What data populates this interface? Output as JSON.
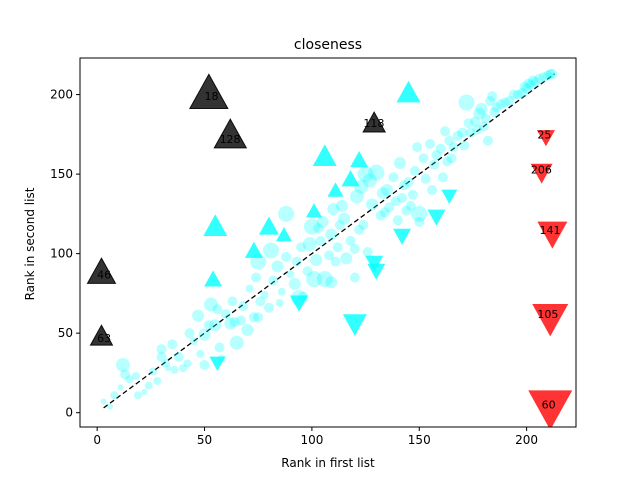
{
  "chart_data": {
    "type": "scatter",
    "title": "closeness",
    "xlabel": "Rank in first list",
    "ylabel": "Rank in second list",
    "xlim": [
      -8,
      223
    ],
    "ylim": [
      -9,
      223
    ],
    "xticks": [
      0,
      50,
      100,
      150,
      200
    ],
    "yticks": [
      0,
      50,
      100,
      150,
      200
    ],
    "grid": false,
    "diagonal": {
      "from": [
        3,
        3
      ],
      "to": [
        213,
        213
      ],
      "style": "dashed",
      "color": "#000000"
    },
    "colors": {
      "agree": "#00ffff",
      "up": "#00ffff",
      "down": "#00ffff",
      "outlier_above": "#000000",
      "outlier_below": "#ff0000"
    },
    "series": [
      {
        "marker": "circle",
        "color": "#00ffff",
        "points": [
          [
            3,
            7
          ],
          [
            6,
            4
          ],
          [
            8,
            11
          ],
          [
            11,
            16
          ],
          [
            12,
            30
          ],
          [
            13,
            24
          ],
          [
            15,
            21
          ],
          [
            18,
            23
          ],
          [
            19,
            11
          ],
          [
            22,
            13
          ],
          [
            24,
            17
          ],
          [
            26,
            26
          ],
          [
            28,
            20
          ],
          [
            30,
            40
          ],
          [
            32,
            31
          ],
          [
            33,
            28
          ],
          [
            35,
            43
          ],
          [
            36,
            27
          ],
          [
            38,
            35
          ],
          [
            40,
            28
          ],
          [
            42,
            31
          ],
          [
            43,
            50
          ],
          [
            45,
            45
          ],
          [
            47,
            61
          ],
          [
            48,
            37
          ],
          [
            50,
            49
          ],
          [
            52,
            55
          ],
          [
            53,
            68
          ],
          [
            55,
            55
          ],
          [
            56,
            65
          ],
          [
            57,
            41
          ],
          [
            58,
            34
          ],
          [
            60,
            62
          ],
          [
            62,
            56
          ],
          [
            63,
            70
          ],
          [
            64,
            57
          ],
          [
            65,
            44
          ],
          [
            67,
            58
          ],
          [
            68,
            67
          ],
          [
            70,
            52
          ],
          [
            71,
            78
          ],
          [
            73,
            60
          ],
          [
            74,
            85
          ],
          [
            75,
            95
          ],
          [
            76,
            70
          ],
          [
            78,
            74
          ],
          [
            80,
            66
          ],
          [
            81,
            102
          ],
          [
            82,
            83
          ],
          [
            84,
            92
          ],
          [
            85,
            69
          ],
          [
            86,
            76
          ],
          [
            88,
            98
          ],
          [
            90,
            87
          ],
          [
            92,
            81
          ],
          [
            93,
            95
          ],
          [
            94,
            72
          ],
          [
            95,
            104
          ],
          [
            96,
            73
          ],
          [
            98,
            89
          ],
          [
            99,
            106
          ],
          [
            100,
            117
          ],
          [
            101,
            84
          ],
          [
            102,
            96
          ],
          [
            103,
            116
          ],
          [
            104,
            108
          ],
          [
            105,
            120
          ],
          [
            106,
            84
          ],
          [
            108,
            99
          ],
          [
            109,
            112
          ],
          [
            110,
            128
          ],
          [
            111,
            95
          ],
          [
            112,
            104
          ],
          [
            113,
            118
          ],
          [
            114,
            130
          ],
          [
            115,
            122
          ],
          [
            116,
            97
          ],
          [
            118,
            108
          ],
          [
            120,
            103
          ],
          [
            121,
            136
          ],
          [
            122,
            115
          ],
          [
            123,
            142
          ],
          [
            124,
            118
          ],
          [
            125,
            150
          ],
          [
            126,
            101
          ],
          [
            127,
            146
          ],
          [
            128,
            131
          ],
          [
            130,
            151
          ],
          [
            132,
            124
          ],
          [
            133,
            138
          ],
          [
            134,
            126
          ],
          [
            135,
            140
          ],
          [
            136,
            129
          ],
          [
            138,
            148
          ],
          [
            139,
            133
          ],
          [
            140,
            121
          ],
          [
            141,
            157
          ],
          [
            142,
            135
          ],
          [
            143,
            143
          ],
          [
            144,
            127
          ],
          [
            145,
            145
          ],
          [
            146,
            130
          ],
          [
            147,
            137
          ],
          [
            148,
            152
          ],
          [
            149,
            167
          ],
          [
            150,
            125
          ],
          [
            152,
            160
          ],
          [
            153,
            147
          ],
          [
            155,
            169
          ],
          [
            156,
            140
          ],
          [
            157,
            156
          ],
          [
            158,
            162
          ],
          [
            160,
            166
          ],
          [
            161,
            148
          ],
          [
            162,
            177
          ],
          [
            163,
            158
          ],
          [
            164,
            171
          ],
          [
            165,
            160
          ],
          [
            166,
            167
          ],
          [
            168,
            174
          ],
          [
            170,
            176
          ],
          [
            171,
            168
          ],
          [
            172,
            195
          ],
          [
            173,
            182
          ],
          [
            174,
            176
          ],
          [
            176,
            183
          ],
          [
            177,
            178
          ],
          [
            178,
            188
          ],
          [
            179,
            191
          ],
          [
            180,
            180
          ],
          [
            181,
            185
          ],
          [
            182,
            171
          ],
          [
            183,
            196
          ],
          [
            184,
            199
          ],
          [
            185,
            189
          ],
          [
            186,
            192
          ],
          [
            188,
            194
          ],
          [
            190,
            195
          ],
          [
            192,
            196
          ],
          [
            194,
            200
          ],
          [
            196,
            200
          ],
          [
            198,
            201
          ],
          [
            199,
            205
          ],
          [
            200,
            204
          ],
          [
            201,
            207
          ],
          [
            202,
            206
          ],
          [
            203,
            209
          ],
          [
            204,
            208
          ],
          [
            206,
            210
          ],
          [
            208,
            211
          ],
          [
            210,
            212
          ],
          [
            211,
            213
          ],
          [
            212,
            213
          ],
          [
            75,
            60
          ],
          [
            30,
            35
          ],
          [
            50,
            30
          ],
          [
            120,
            85
          ],
          [
            88,
            125
          ],
          [
            109,
            82
          ],
          [
            150,
            120
          ]
        ],
        "sizes": [
          3,
          3,
          4,
          3,
          7,
          5,
          4,
          4,
          4,
          3,
          4,
          4,
          4,
          5,
          4,
          3,
          5,
          4,
          5,
          4,
          4,
          5,
          4,
          6,
          4,
          6,
          5,
          7,
          6,
          5,
          5,
          4,
          5,
          6,
          5,
          5,
          7,
          5,
          5,
          6,
          4,
          5,
          5,
          8,
          5,
          4,
          5,
          8,
          5,
          6,
          4,
          4,
          5,
          4,
          6,
          5,
          8,
          5,
          5,
          5,
          7,
          8,
          8,
          6,
          5,
          5,
          6,
          8,
          5,
          6,
          6,
          5,
          5,
          5,
          6,
          6,
          6,
          5,
          5,
          7,
          5,
          7,
          5,
          8,
          5,
          7,
          6,
          8,
          5,
          6,
          5,
          6,
          5,
          5,
          5,
          5,
          6,
          5,
          5,
          5,
          5,
          5,
          5,
          5,
          5,
          8,
          5,
          5,
          5,
          5,
          5,
          5,
          5,
          5,
          5,
          5,
          5,
          5,
          5,
          5,
          5,
          5,
          8,
          5,
          5,
          5,
          5,
          6,
          6,
          5,
          5,
          5,
          5,
          5,
          5,
          5,
          5,
          5,
          5,
          5,
          5,
          5,
          5,
          5,
          5,
          5,
          5,
          5,
          5,
          5,
          5,
          5,
          5,
          5,
          5,
          5,
          5,
          8,
          6,
          5
        ]
      },
      {
        "marker": "triangle-up",
        "color": "#00ffff",
        "points": [
          [
            55,
            116
          ],
          [
            54,
            83
          ],
          [
            73,
            101
          ],
          [
            80,
            116
          ],
          [
            87,
            111
          ],
          [
            106,
            160
          ],
          [
            101,
            126
          ],
          [
            111,
            139
          ],
          [
            118,
            146
          ],
          [
            122,
            158
          ],
          [
            145,
            200
          ]
        ],
        "sizes": [
          12,
          9,
          9,
          10,
          8,
          12,
          8,
          8,
          9,
          9,
          12
        ]
      },
      {
        "marker": "triangle-down",
        "color": "#00ffff",
        "points": [
          [
            56,
            32
          ],
          [
            94,
            70
          ],
          [
            120,
            57
          ],
          [
            129,
            95
          ],
          [
            130,
            90
          ],
          [
            142,
            112
          ],
          [
            158,
            124
          ],
          [
            164,
            137
          ]
        ],
        "sizes": [
          8,
          9,
          12,
          9,
          9,
          9,
          9,
          8
        ]
      },
      {
        "marker": "triangle-up",
        "color": "#000000",
        "points": [
          [
            52,
            199
          ],
          [
            62,
            173
          ],
          [
            129,
            181
          ],
          [
            2,
            87
          ],
          [
            2,
            47
          ]
        ],
        "sizes": [
          19,
          16,
          11,
          14,
          11
        ]
      },
      {
        "marker": "triangle-down",
        "color": "#ff0000",
        "points": [
          [
            209,
            174
          ],
          [
            207,
            152
          ],
          [
            212,
            114
          ],
          [
            211,
            61
          ],
          [
            211,
            5
          ]
        ],
        "sizes": [
          9,
          11,
          15,
          18,
          22
        ]
      }
    ],
    "annotations": [
      {
        "text": "18",
        "x": 50,
        "y": 199
      },
      {
        "text": "128",
        "x": 57,
        "y": 172
      },
      {
        "text": "118",
        "x": 124,
        "y": 182
      },
      {
        "text": "46",
        "x": 0,
        "y": 87
      },
      {
        "text": "63",
        "x": 0,
        "y": 47
      },
      {
        "text": "25",
        "x": 205,
        "y": 175
      },
      {
        "text": "206",
        "x": 202,
        "y": 153
      },
      {
        "text": "141",
        "x": 206,
        "y": 115
      },
      {
        "text": "105",
        "x": 205,
        "y": 62
      },
      {
        "text": "60",
        "x": 207,
        "y": 5
      }
    ]
  }
}
